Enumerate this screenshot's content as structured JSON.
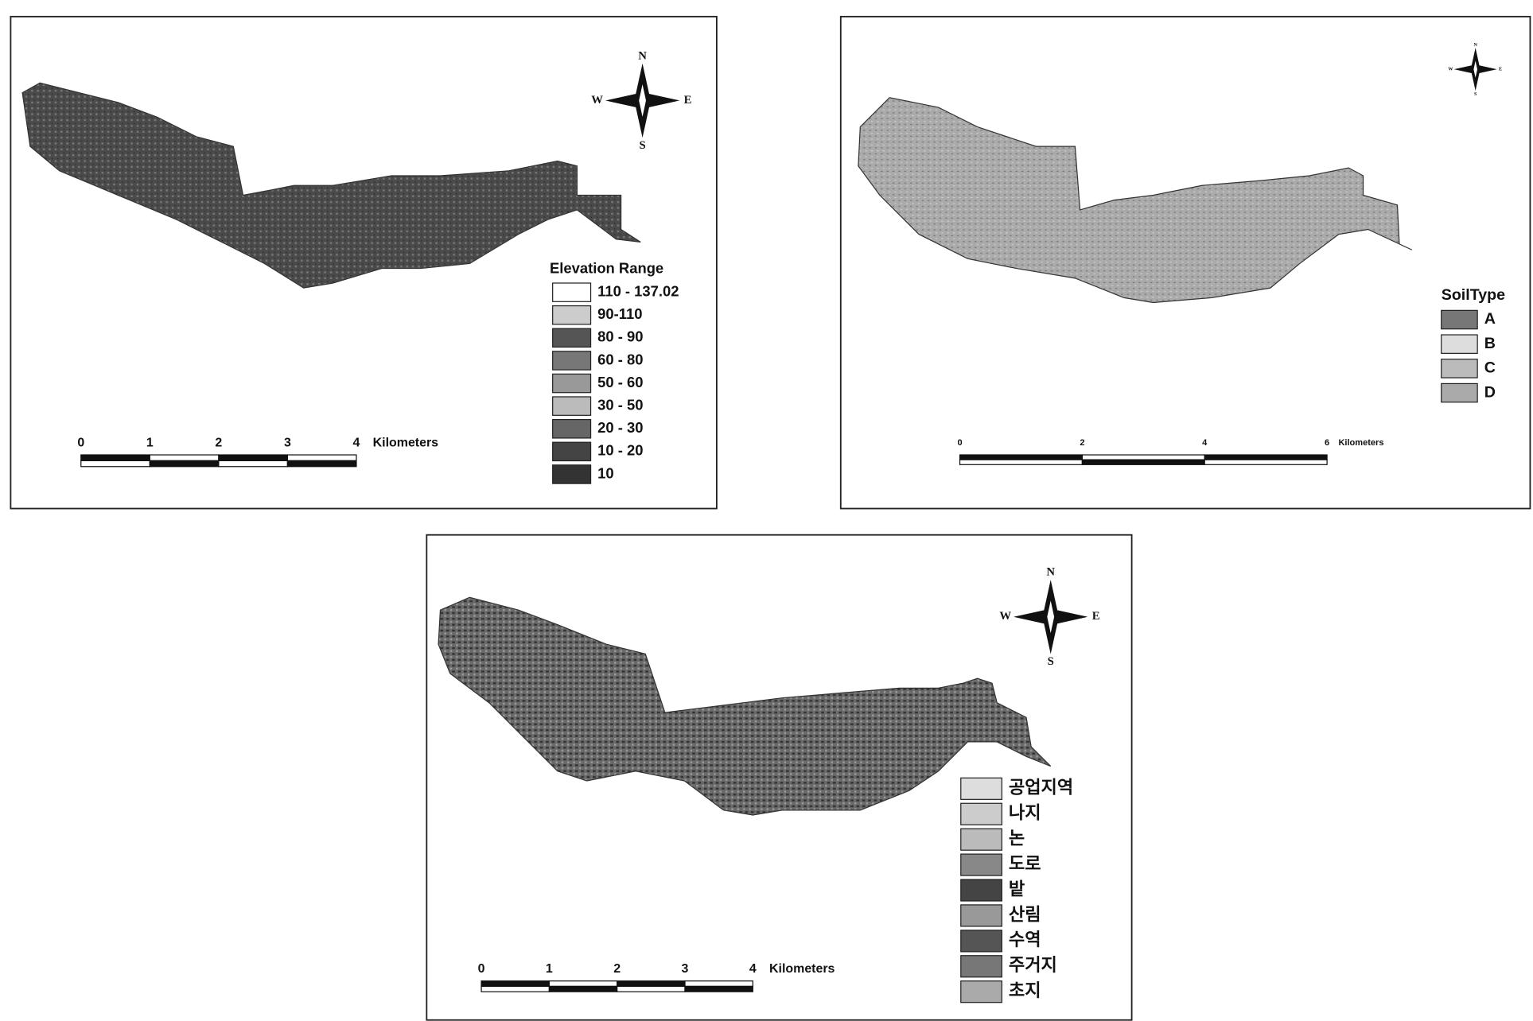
{
  "maps": [
    {
      "compass": {
        "n": "N",
        "s": "S",
        "w": "W",
        "e": "E"
      },
      "legend": {
        "title": "Elevation Range",
        "items": [
          "110 - 137.02",
          "90-110",
          "80 - 90",
          "60 - 80",
          "50 - 60",
          "30 - 50",
          "20 - 30",
          "10 - 20",
          "10"
        ]
      },
      "scale_bar": {
        "ticks": [
          0,
          1,
          2,
          3,
          4
        ],
        "unit": "Kilometers"
      }
    },
    {
      "compass": {
        "n": "N",
        "s": "S",
        "w": "W",
        "e": "E"
      },
      "legend": {
        "title": "SoilType",
        "items": [
          "A",
          "B",
          "C",
          "D"
        ]
      },
      "scale_bar": {
        "ticks": [
          0,
          2,
          4,
          6
        ],
        "unit": "Kilometers"
      }
    },
    {
      "compass": {
        "n": "N",
        "s": "S",
        "w": "W",
        "e": "E"
      },
      "legend": {
        "items": [
          "공업지역",
          "나지",
          "논",
          "도로",
          "밭",
          "산림",
          "수역",
          "주거지",
          "초지"
        ]
      },
      "scale_bar": {
        "ticks": [
          0,
          1,
          2,
          3,
          4
        ],
        "unit": "Kilometers"
      }
    }
  ]
}
